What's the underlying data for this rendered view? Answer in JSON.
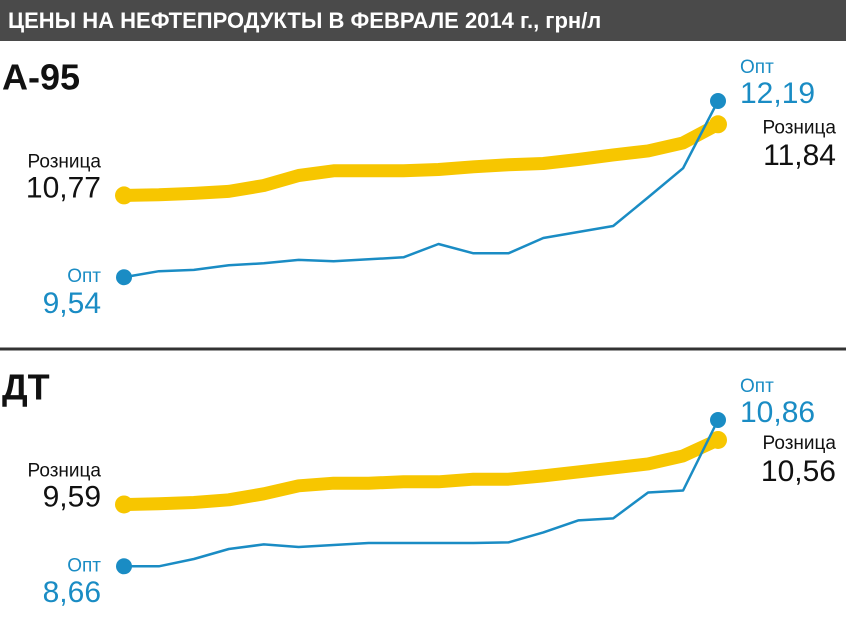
{
  "title": "ЦЕНЫ НА НЕФТЕПРОДУКТЫ В ФЕВРАЛЕ 2014 г., грн/л",
  "chart_data": [
    {
      "type": "line",
      "title": "А-95",
      "series": [
        {
          "name": "Розница",
          "color": "#f7c600",
          "values": [
            10.77,
            10.78,
            10.8,
            10.83,
            10.92,
            11.07,
            11.14,
            11.14,
            11.14,
            11.16,
            11.2,
            11.23,
            11.25,
            11.31,
            11.38,
            11.44,
            11.56,
            11.84
          ],
          "value_labels": [
            "10,77",
            null,
            null,
            null,
            null,
            null,
            null,
            null,
            null,
            null,
            null,
            null,
            null,
            null,
            null,
            null,
            null,
            "11,84"
          ]
        },
        {
          "name": "Опт",
          "color": "#1a8cc4",
          "values": [
            9.54,
            9.63,
            9.65,
            9.72,
            9.75,
            9.8,
            9.78,
            9.81,
            9.84,
            10.04,
            9.9,
            9.9,
            10.13,
            10.22,
            10.31,
            10.74,
            11.18,
            12.19
          ],
          "value_labels": [
            "9,54",
            null,
            null,
            null,
            null,
            null,
            null,
            null,
            null,
            null,
            null,
            null,
            null,
            null,
            null,
            null,
            null,
            "12,19"
          ]
        }
      ]
    },
    {
      "type": "line",
      "title": "ДТ",
      "series": [
        {
          "name": "Розница",
          "color": "#f7c600",
          "values": [
            9.59,
            9.6,
            9.62,
            9.66,
            9.75,
            9.87,
            9.91,
            9.91,
            9.93,
            9.93,
            9.97,
            9.97,
            10.02,
            10.08,
            10.14,
            10.2,
            10.32,
            10.56
          ],
          "value_labels": [
            "9,59",
            null,
            null,
            null,
            null,
            null,
            null,
            null,
            null,
            null,
            null,
            null,
            null,
            null,
            null,
            null,
            null,
            "10,56"
          ]
        },
        {
          "name": "Опт",
          "color": "#1a8cc4",
          "values": [
            8.66,
            8.66,
            8.77,
            8.92,
            8.99,
            8.95,
            8.98,
            9.01,
            9.01,
            9.01,
            9.01,
            9.02,
            9.17,
            9.35,
            9.38,
            9.77,
            9.8,
            10.86
          ],
          "value_labels": [
            "8,66",
            null,
            null,
            null,
            null,
            null,
            null,
            null,
            null,
            null,
            null,
            null,
            null,
            null,
            null,
            null,
            null,
            "10,86"
          ]
        }
      ]
    }
  ]
}
